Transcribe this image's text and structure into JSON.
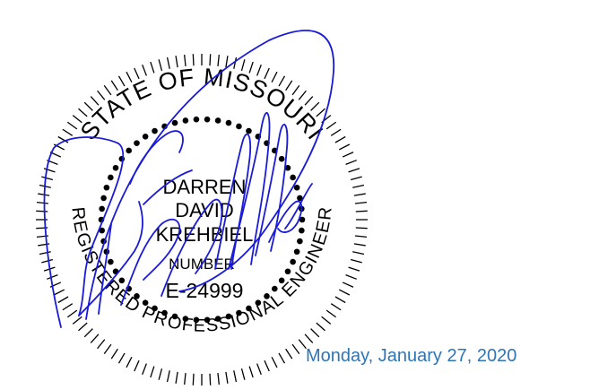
{
  "seal": {
    "state_text": "STATE OF MISSOURI",
    "license_type_text": "REGISTERED PROFESSIONAL ENGINEER",
    "name_lines": [
      "DARREN",
      "DAVID",
      "KREHBIEL"
    ],
    "number_label": "NUMBER",
    "license_number": "E-24999"
  },
  "signature": {
    "color": "#1a1ad9"
  },
  "date_text": "Monday, January 27, 2020",
  "colors": {
    "seal_ink": "#000000",
    "date_text": "#2e75b6",
    "signature_ink": "#1a1ad9"
  }
}
